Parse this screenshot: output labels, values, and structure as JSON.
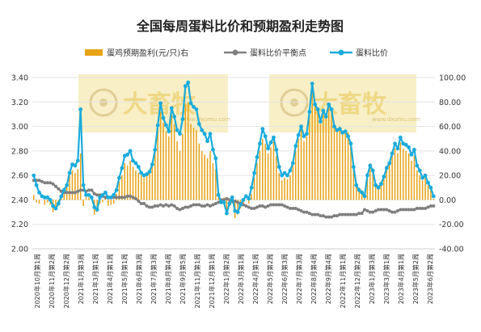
{
  "chart_data": {
    "type": "bar-line-combo",
    "title": "全国每周蛋料比价和预期盈利走势图",
    "legend": {
      "placement": "top",
      "entries": [
        "蛋鸡预期盈利(元/只)右",
        "蛋料比价平衡点",
        "蛋料比价"
      ]
    },
    "watermark": {
      "text": "大畜牧",
      "url": "www.dxumu.com"
    },
    "colors": {
      "bars": "#e8a317",
      "balance": "#7f7f7f",
      "ratio": "#1aabdb"
    },
    "y_left": {
      "min": 2.0,
      "max": 3.4,
      "ticks": [
        "2.00",
        "2.20",
        "2.40",
        "2.60",
        "2.80",
        "3.00",
        "3.20",
        "3.40"
      ]
    },
    "y_right": {
      "min": -40,
      "max": 100,
      "ticks": [
        "-40.00",
        "-20.00",
        "0.00",
        "20.00",
        "40.00",
        "60.00",
        "80.00",
        "100.00"
      ]
    },
    "x_tick_labels": [
      "2020年10月第1周",
      "2020年11月第2周",
      "2020年12月第2周",
      "2021年1月第3周",
      "2021年3月第1周",
      "2021年4月第1周",
      "2021年5月第1周",
      "2021年6月第3周",
      "2021年7月第3周",
      "2021年8月第4周",
      "2021年9月第5周",
      "2021年11月第1周",
      "2021年12月第1周",
      "2022年1月第2周",
      "2022年3月第1周",
      "2022年4月第1周",
      "2022年5月第2周",
      "2022年6月第3周",
      "2022年7月第3周",
      "2022年8月第4周",
      "2022年9月第4周",
      "2022年11月第1周",
      "2022年12月第2周",
      "2023年1月第3周",
      "2023年3月第1周",
      "2023年4月第1周",
      "2023年5月第2周",
      "2023年6月第2周"
    ],
    "series": [
      {
        "name": "蛋鸡预期盈利(元/只)右",
        "axis": "right",
        "kind": "bar",
        "values": [
          4,
          -2,
          -3,
          0,
          -4,
          -2,
          -4,
          -10,
          -7,
          -2,
          2,
          10,
          12,
          20,
          24,
          22,
          25,
          38,
          -5,
          2,
          2,
          2,
          -12,
          -10,
          -3,
          -2,
          1,
          -5,
          -4,
          -3,
          5,
          15,
          20,
          30,
          28,
          32,
          27,
          24,
          22,
          20,
          18,
          20,
          22,
          28,
          40,
          58,
          72,
          63,
          56,
          52,
          70,
          62,
          48,
          40,
          54,
          78,
          80,
          62,
          59,
          57,
          46,
          40,
          37,
          34,
          40,
          30,
          25,
          2,
          0,
          2,
          -10,
          -5,
          -3,
          -15,
          -12,
          -7,
          -3,
          0,
          -3,
          5,
          18,
          30,
          40,
          50,
          46,
          38,
          43,
          48,
          36,
          22,
          16,
          18,
          17,
          20,
          28,
          40,
          50,
          58,
          48,
          52,
          70,
          88,
          78,
          74,
          62,
          70,
          68,
          77,
          73,
          60,
          58,
          60,
          56,
          57,
          55,
          46,
          28,
          14,
          10,
          8,
          6,
          22,
          30,
          24,
          14,
          12,
          15,
          20,
          28,
          30,
          38,
          42,
          38,
          47,
          42,
          40,
          38,
          32,
          36,
          24,
          20,
          16,
          18,
          12,
          8,
          1
        ]
      },
      {
        "name": "蛋料比价平衡点",
        "axis": "left",
        "kind": "line",
        "values": [
          2.56,
          2.56,
          2.56,
          2.55,
          2.54,
          2.54,
          2.54,
          2.53,
          2.51,
          2.49,
          2.47,
          2.46,
          2.46,
          2.46,
          2.46,
          2.46,
          2.47,
          2.48,
          2.48,
          2.47,
          2.48,
          2.48,
          2.45,
          2.44,
          2.44,
          2.43,
          2.42,
          2.42,
          2.42,
          2.42,
          2.42,
          2.42,
          2.42,
          2.42,
          2.43,
          2.43,
          2.42,
          2.41,
          2.39,
          2.37,
          2.37,
          2.35,
          2.34,
          2.34,
          2.35,
          2.35,
          2.36,
          2.35,
          2.36,
          2.35,
          2.36,
          2.35,
          2.33,
          2.32,
          2.33,
          2.34,
          2.34,
          2.35,
          2.36,
          2.36,
          2.36,
          2.35,
          2.35,
          2.36,
          2.35,
          2.36,
          2.37,
          2.38,
          2.4,
          2.4,
          2.41,
          2.4,
          2.39,
          2.39,
          2.38,
          2.37,
          2.36,
          2.35,
          2.34,
          2.33,
          2.33,
          2.34,
          2.35,
          2.35,
          2.34,
          2.35,
          2.36,
          2.36,
          2.36,
          2.36,
          2.36,
          2.35,
          2.34,
          2.33,
          2.33,
          2.33,
          2.32,
          2.31,
          2.3,
          2.3,
          2.29,
          2.28,
          2.28,
          2.28,
          2.27,
          2.27,
          2.26,
          2.26,
          2.26,
          2.27,
          2.27,
          2.28,
          2.28,
          2.28,
          2.28,
          2.28,
          2.28,
          2.28,
          2.29,
          2.29,
          2.32,
          2.31,
          2.3,
          2.3,
          2.31,
          2.32,
          2.32,
          2.32,
          2.32,
          2.31,
          2.3,
          2.3,
          2.31,
          2.32,
          2.32,
          2.32,
          2.32,
          2.32,
          2.32,
          2.33,
          2.33,
          2.33,
          2.33,
          2.34,
          2.35,
          2.35
        ]
      },
      {
        "name": "蛋料比价",
        "axis": "left",
        "kind": "line",
        "values": [
          2.6,
          2.52,
          2.46,
          2.43,
          2.42,
          2.42,
          2.4,
          2.35,
          2.33,
          2.37,
          2.43,
          2.48,
          2.52,
          2.62,
          2.69,
          2.68,
          2.72,
          3.14,
          2.52,
          2.44,
          2.44,
          2.42,
          2.34,
          2.32,
          2.42,
          2.44,
          2.46,
          2.42,
          2.42,
          2.44,
          2.48,
          2.58,
          2.66,
          2.76,
          2.77,
          2.8,
          2.72,
          2.7,
          2.67,
          2.62,
          2.6,
          2.61,
          2.63,
          2.69,
          2.81,
          3.01,
          3.19,
          3.07,
          3.01,
          2.96,
          3.15,
          3.08,
          2.97,
          2.94,
          3.06,
          3.33,
          3.36,
          3.19,
          3.16,
          3.14,
          3.02,
          2.97,
          2.94,
          2.88,
          2.94,
          2.81,
          2.74,
          2.44,
          2.38,
          2.38,
          2.29,
          2.37,
          2.42,
          2.31,
          2.3,
          2.36,
          2.4,
          2.43,
          2.41,
          2.5,
          2.62,
          2.75,
          2.86,
          2.98,
          2.92,
          2.82,
          2.87,
          2.91,
          2.81,
          2.67,
          2.6,
          2.62,
          2.6,
          2.64,
          2.7,
          2.84,
          2.93,
          3.0,
          2.92,
          2.94,
          3.12,
          3.35,
          3.18,
          3.14,
          3.04,
          3.13,
          3.08,
          3.18,
          3.14,
          3.0,
          2.97,
          2.98,
          2.95,
          2.96,
          2.92,
          2.86,
          2.67,
          2.52,
          2.48,
          2.46,
          2.43,
          2.6,
          2.68,
          2.64,
          2.52,
          2.5,
          2.53,
          2.59,
          2.66,
          2.7,
          2.78,
          2.86,
          2.82,
          2.91,
          2.86,
          2.85,
          2.83,
          2.77,
          2.81,
          2.68,
          2.64,
          2.58,
          2.6,
          2.54,
          2.5,
          2.43
        ]
      }
    ]
  }
}
